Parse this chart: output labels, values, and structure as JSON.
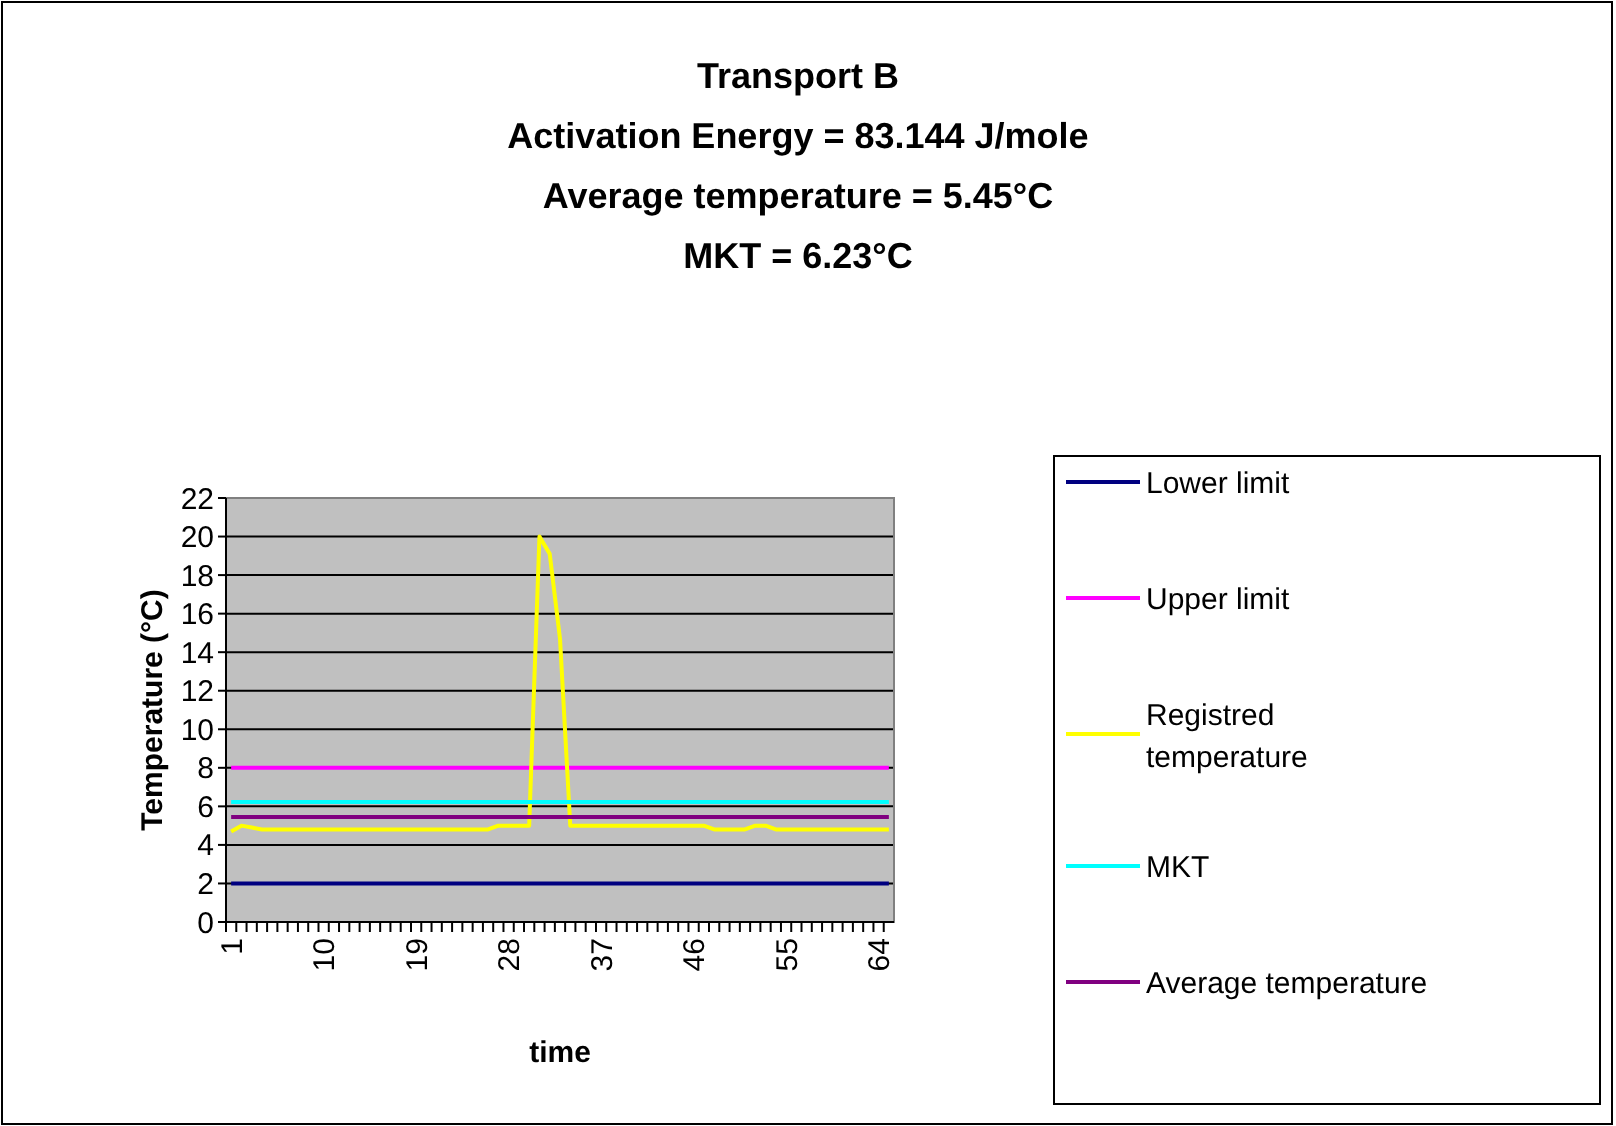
{
  "chart_data": {
    "type": "line",
    "title": "Transport B\nActivation Energy = 83.144 J/mole\nAverage temperature = 5.45°C\nMKT = 6.23°C",
    "xlabel": "time",
    "ylabel": "Temperature (°C)",
    "categories": [
      "1",
      null,
      null,
      null,
      null,
      null,
      null,
      null,
      null,
      "10",
      null,
      null,
      null,
      null,
      null,
      null,
      null,
      null,
      "19",
      null,
      null,
      null,
      null,
      null,
      null,
      null,
      null,
      "28",
      null,
      null,
      null,
      null,
      null,
      null,
      null,
      null,
      "37",
      null,
      null,
      null,
      null,
      null,
      null,
      null,
      null,
      "46",
      null,
      null,
      null,
      null,
      null,
      null,
      null,
      null,
      "55",
      null,
      null,
      null,
      null,
      null,
      null,
      null,
      null,
      "64",
      null
    ],
    "series": [
      {
        "name": "Lower limit",
        "color": "#000080",
        "values": [
          2,
          2,
          2,
          2,
          2,
          2,
          2,
          2,
          2,
          2,
          2,
          2,
          2,
          2,
          2,
          2,
          2,
          2,
          2,
          2,
          2,
          2,
          2,
          2,
          2,
          2,
          2,
          2,
          2,
          2,
          2,
          2,
          2,
          2,
          2,
          2,
          2,
          2,
          2,
          2,
          2,
          2,
          2,
          2,
          2,
          2,
          2,
          2,
          2,
          2,
          2,
          2,
          2,
          2,
          2,
          2,
          2,
          2,
          2,
          2,
          2,
          2,
          2,
          2,
          2
        ]
      },
      {
        "name": "Upper limit",
        "color": "#ff00ff",
        "values": [
          8,
          8,
          8,
          8,
          8,
          8,
          8,
          8,
          8,
          8,
          8,
          8,
          8,
          8,
          8,
          8,
          8,
          8,
          8,
          8,
          8,
          8,
          8,
          8,
          8,
          8,
          8,
          8,
          8,
          8,
          8,
          8,
          8,
          8,
          8,
          8,
          8,
          8,
          8,
          8,
          8,
          8,
          8,
          8,
          8,
          8,
          8,
          8,
          8,
          8,
          8,
          8,
          8,
          8,
          8,
          8,
          8,
          8,
          8,
          8,
          8,
          8,
          8,
          8,
          8
        ]
      },
      {
        "name": "Registred temperature",
        "color": "#ffff00",
        "values": [
          4.7,
          5.0,
          4.9,
          4.8,
          4.8,
          4.8,
          4.8,
          4.8,
          4.8,
          4.8,
          4.8,
          4.8,
          4.8,
          4.8,
          4.8,
          4.8,
          4.8,
          4.8,
          4.8,
          4.8,
          4.8,
          4.8,
          4.8,
          4.8,
          4.8,
          4.8,
          5.0,
          5.0,
          5.0,
          5.0,
          20,
          19.1,
          14.7,
          5.0,
          5.0,
          5.0,
          5.0,
          5.0,
          5.0,
          5.0,
          5.0,
          5.0,
          5.0,
          5.0,
          5.0,
          5.0,
          5.0,
          4.8,
          4.8,
          4.8,
          4.8,
          5.0,
          5.0,
          4.8,
          4.8,
          4.8,
          4.8,
          4.8,
          4.8,
          4.8,
          4.8,
          4.8,
          4.8,
          4.8,
          4.8
        ]
      },
      {
        "name": "MKT",
        "color": "#00ffff",
        "values": [
          6.23,
          6.23,
          6.23,
          6.23,
          6.23,
          6.23,
          6.23,
          6.23,
          6.23,
          6.23,
          6.23,
          6.23,
          6.23,
          6.23,
          6.23,
          6.23,
          6.23,
          6.23,
          6.23,
          6.23,
          6.23,
          6.23,
          6.23,
          6.23,
          6.23,
          6.23,
          6.23,
          6.23,
          6.23,
          6.23,
          6.23,
          6.23,
          6.23,
          6.23,
          6.23,
          6.23,
          6.23,
          6.23,
          6.23,
          6.23,
          6.23,
          6.23,
          6.23,
          6.23,
          6.23,
          6.23,
          6.23,
          6.23,
          6.23,
          6.23,
          6.23,
          6.23,
          6.23,
          6.23,
          6.23,
          6.23,
          6.23,
          6.23,
          6.23,
          6.23,
          6.23,
          6.23,
          6.23,
          6.23,
          6.23
        ]
      },
      {
        "name": "Average temperature",
        "color": "#800080",
        "values": [
          5.45,
          5.45,
          5.45,
          5.45,
          5.45,
          5.45,
          5.45,
          5.45,
          5.45,
          5.45,
          5.45,
          5.45,
          5.45,
          5.45,
          5.45,
          5.45,
          5.45,
          5.45,
          5.45,
          5.45,
          5.45,
          5.45,
          5.45,
          5.45,
          5.45,
          5.45,
          5.45,
          5.45,
          5.45,
          5.45,
          5.45,
          5.45,
          5.45,
          5.45,
          5.45,
          5.45,
          5.45,
          5.45,
          5.45,
          5.45,
          5.45,
          5.45,
          5.45,
          5.45,
          5.45,
          5.45,
          5.45,
          5.45,
          5.45,
          5.45,
          5.45,
          5.45,
          5.45,
          5.45,
          5.45,
          5.45,
          5.45,
          5.45,
          5.45,
          5.45,
          5.45,
          5.45,
          5.45,
          5.45,
          5.45
        ]
      }
    ],
    "ylim": [
      0,
      22
    ],
    "yticks": [
      0,
      2,
      4,
      6,
      8,
      10,
      12,
      14,
      16,
      18,
      20,
      22
    ],
    "grid": "y",
    "legend": "right",
    "line_style": "solid"
  }
}
